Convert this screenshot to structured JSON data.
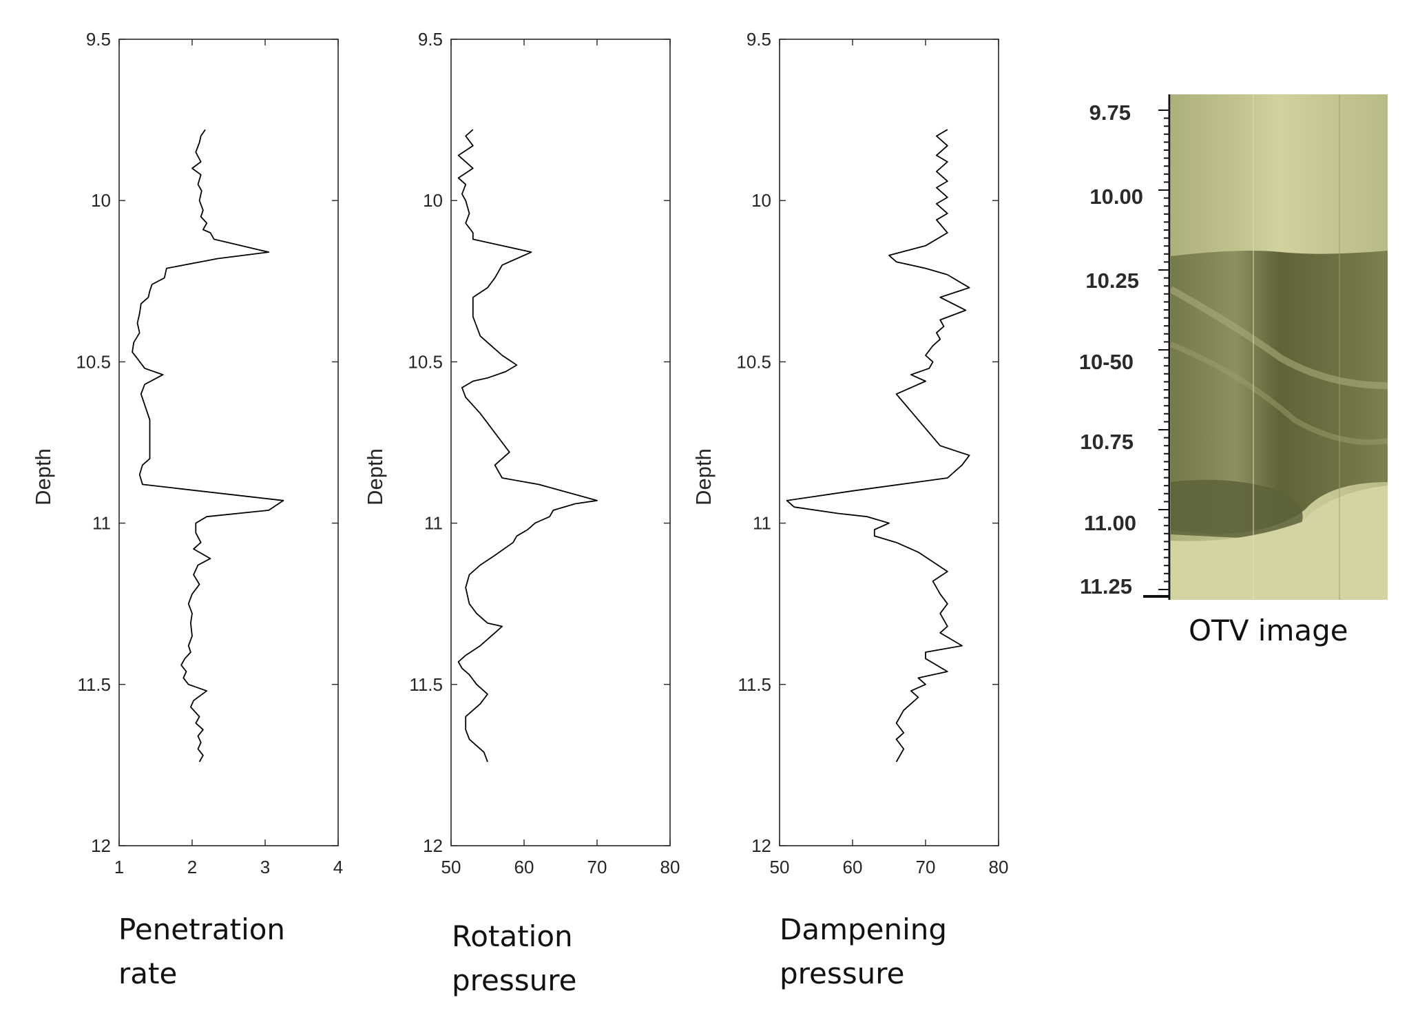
{
  "chart_data": [
    {
      "type": "line",
      "title": "",
      "caption": "Penetration\nrate",
      "xlabel": "",
      "ylabel": "Depth",
      "xlim": [
        1,
        4
      ],
      "ylim": [
        9.5,
        12
      ],
      "y_reversed": true,
      "x_ticks": [
        "1",
        "2",
        "3",
        "4"
      ],
      "y_ticks": [
        "9.5",
        "10",
        "10.5",
        "11",
        "11.5",
        "12"
      ],
      "series": [
        {
          "name": "Penetration rate",
          "x": [
            2.18,
            2.12,
            2.1,
            2.05,
            2.12,
            2.0,
            2.12,
            2.08,
            2.13,
            2.1,
            2.15,
            2.12,
            2.2,
            2.15,
            2.25,
            2.3,
            3.05,
            2.35,
            1.65,
            1.62,
            1.45,
            1.42,
            1.4,
            1.3,
            1.28,
            1.25,
            1.28,
            1.2,
            1.18,
            1.25,
            1.35,
            1.6,
            1.35,
            1.3,
            1.42,
            1.42,
            1.32,
            1.28,
            1.32,
            3.25,
            3.05,
            2.2,
            2.05,
            2.05,
            2.12,
            2.02,
            2.25,
            2.08,
            2.02,
            2.1,
            2.0,
            1.95,
            2.0,
            1.98,
            2.0,
            1.95,
            1.98,
            1.9,
            1.85,
            1.92,
            1.88,
            1.95,
            2.2,
            2.02,
            1.98,
            2.1,
            2.05,
            2.15,
            2.08,
            2.12,
            2.08,
            2.15,
            2.1
          ],
          "y": [
            9.78,
            9.8,
            9.82,
            9.85,
            9.88,
            9.9,
            9.92,
            9.95,
            9.97,
            10.0,
            10.03,
            10.05,
            10.07,
            10.09,
            10.1,
            10.12,
            10.16,
            10.18,
            10.21,
            10.24,
            10.26,
            10.28,
            10.3,
            10.32,
            10.35,
            10.38,
            10.41,
            10.44,
            10.47,
            10.49,
            10.52,
            10.54,
            10.57,
            10.6,
            10.68,
            10.8,
            10.82,
            10.85,
            10.88,
            10.93,
            10.96,
            10.98,
            11.0,
            11.03,
            11.06,
            11.08,
            11.11,
            11.13,
            11.16,
            11.19,
            11.22,
            11.25,
            11.28,
            11.31,
            11.35,
            11.38,
            11.4,
            11.42,
            11.44,
            11.46,
            11.48,
            11.5,
            11.52,
            11.55,
            11.57,
            11.6,
            11.62,
            11.64,
            11.66,
            11.68,
            11.7,
            11.72,
            11.74
          ]
        }
      ]
    },
    {
      "type": "line",
      "title": "",
      "caption": "Rotation\npressure",
      "xlabel": "",
      "ylabel": "Depth",
      "xlim": [
        50,
        80
      ],
      "ylim": [
        9.5,
        12
      ],
      "y_reversed": true,
      "x_ticks": [
        "50",
        "60",
        "70",
        "80"
      ],
      "y_ticks": [
        "9.5",
        "10",
        "10.5",
        "11",
        "11.5",
        "12"
      ],
      "series": [
        {
          "name": "Rotation pressure",
          "x": [
            53,
            52,
            53,
            51,
            52,
            53,
            51,
            52,
            51.5,
            52,
            52.5,
            52,
            53,
            53,
            61,
            57,
            56,
            55,
            53,
            53,
            53,
            53.5,
            54,
            55,
            56,
            57,
            59,
            57.5,
            55,
            53,
            51.5,
            52,
            54,
            56,
            57,
            58,
            57,
            56,
            57,
            62,
            70,
            67,
            64,
            63.5,
            61.5,
            60.5,
            59,
            58.5,
            56,
            54,
            52.5,
            52,
            52.5,
            53.5,
            55,
            57,
            56,
            54,
            52,
            51,
            51.5,
            52.5,
            53.5,
            55,
            54,
            53,
            52,
            52,
            52.5,
            53.5,
            54.5,
            55
          ],
          "y": [
            9.78,
            9.8,
            9.83,
            9.86,
            9.88,
            9.9,
            9.93,
            9.95,
            9.98,
            10.0,
            10.04,
            10.07,
            10.1,
            10.12,
            10.16,
            10.2,
            10.24,
            10.27,
            10.3,
            10.33,
            10.36,
            10.39,
            10.42,
            10.44,
            10.46,
            10.48,
            10.51,
            10.53,
            10.55,
            10.56,
            10.58,
            10.61,
            10.66,
            10.72,
            10.75,
            10.78,
            10.8,
            10.82,
            10.86,
            10.88,
            10.93,
            10.94,
            10.96,
            10.98,
            11.0,
            11.02,
            11.04,
            11.06,
            11.1,
            11.13,
            11.16,
            11.2,
            11.25,
            11.28,
            11.31,
            11.32,
            11.34,
            11.38,
            11.41,
            11.43,
            11.45,
            11.47,
            11.5,
            11.53,
            11.56,
            11.58,
            11.6,
            11.64,
            11.67,
            11.69,
            11.71,
            11.74
          ]
        }
      ]
    },
    {
      "type": "line",
      "title": "",
      "caption": "Dampening\npressure",
      "xlabel": "",
      "ylabel": "Depth",
      "xlim": [
        50,
        80
      ],
      "ylim": [
        9.5,
        12
      ],
      "y_reversed": true,
      "x_ticks": [
        "50",
        "60",
        "70",
        "80"
      ],
      "y_ticks": [
        "9.5",
        "10",
        "10.5",
        "11",
        "11.5",
        "12"
      ],
      "series": [
        {
          "name": "Dampening pressure",
          "x": [
            73,
            71.5,
            73,
            71.5,
            73,
            71.5,
            73,
            71.5,
            73,
            71.5,
            73,
            71.5,
            73,
            70,
            65,
            66,
            70,
            73,
            76,
            72,
            75.5,
            72,
            72.5,
            71.5,
            72,
            71,
            70,
            71,
            70.5,
            68,
            69,
            70,
            66,
            69,
            72,
            76,
            75,
            73,
            60,
            51,
            52,
            58,
            62,
            65,
            63,
            63,
            66,
            69,
            71,
            73,
            71,
            72,
            73,
            72,
            72.5,
            73,
            72,
            75,
            70,
            70,
            73,
            69,
            70,
            68,
            69,
            67,
            66,
            67,
            66,
            67,
            66
          ],
          "y": [
            9.78,
            9.8,
            9.83,
            9.86,
            9.88,
            9.91,
            9.94,
            9.96,
            9.99,
            10.01,
            10.04,
            10.06,
            10.1,
            10.14,
            10.17,
            10.19,
            10.21,
            10.23,
            10.27,
            10.3,
            10.34,
            10.37,
            10.39,
            10.41,
            10.43,
            10.45,
            10.48,
            10.5,
            10.52,
            10.54,
            10.55,
            10.56,
            10.6,
            10.68,
            10.76,
            10.79,
            10.82,
            10.86,
            10.9,
            10.93,
            10.95,
            10.97,
            10.98,
            11.0,
            11.02,
            11.04,
            11.06,
            11.09,
            11.12,
            11.15,
            11.18,
            11.22,
            11.25,
            11.28,
            11.3,
            11.32,
            11.34,
            11.38,
            11.4,
            11.42,
            11.46,
            11.48,
            11.5,
            11.52,
            11.54,
            11.58,
            11.62,
            11.65,
            11.67,
            11.7,
            11.74
          ]
        }
      ]
    }
  ],
  "otv_image": {
    "caption": "OTV image",
    "depth_labels": [
      "9.75",
      "10.00",
      "10.25",
      "10-50",
      "10.75",
      "11.00",
      "11.25"
    ]
  }
}
